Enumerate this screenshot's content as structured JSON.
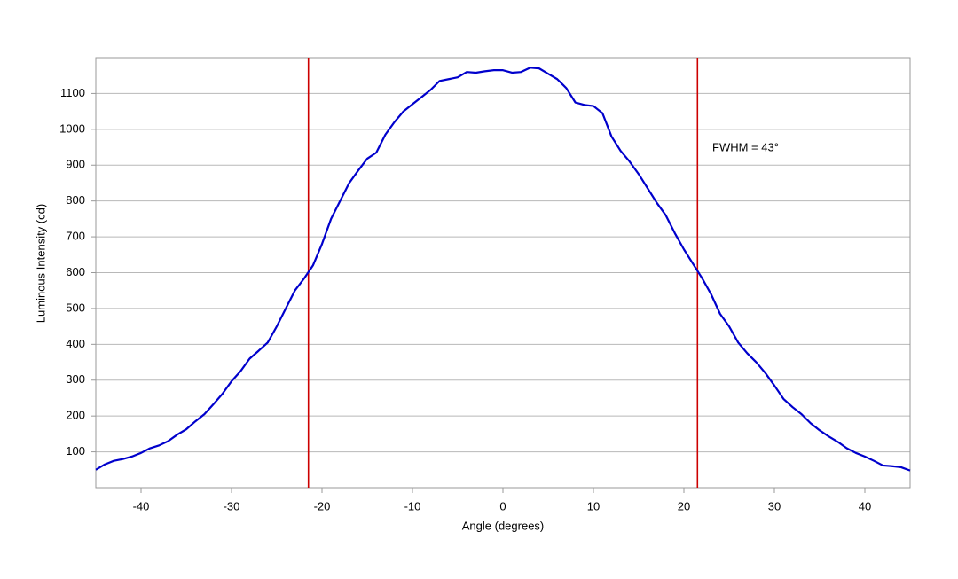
{
  "chart_data": {
    "type": "line",
    "x_label": "Angle (degrees)",
    "y_label": "Luminous Intensity (cd)",
    "annotation": "FWHM = 43°",
    "x": [
      -45,
      -44,
      -43,
      -42,
      -41,
      -40,
      -39,
      -38,
      -37,
      -36,
      -35,
      -34,
      -33,
      -32,
      -31,
      -30,
      -29,
      -28,
      -27,
      -26,
      -25,
      -24,
      -23,
      -22,
      -21,
      -20,
      -19,
      -18,
      -17,
      -16,
      -15,
      -14,
      -13,
      -12,
      -11,
      -10,
      -9,
      -8,
      -7,
      -6,
      -5,
      -4,
      -3,
      -2,
      -1,
      0,
      1,
      2,
      3,
      4,
      5,
      6,
      7,
      8,
      9,
      10,
      11,
      12,
      13,
      14,
      15,
      16,
      17,
      18,
      19,
      20,
      21,
      22,
      23,
      24,
      25,
      26,
      27,
      28,
      29,
      30,
      31,
      32,
      33,
      34,
      35,
      36,
      37,
      38,
      39,
      40,
      41,
      42,
      43,
      44,
      45
    ],
    "series": [
      {
        "color": "#0000cc",
        "values": [
          50,
          65,
          75,
          80,
          87,
          97,
          110,
          118,
          130,
          148,
          163,
          185,
          205,
          233,
          262,
          297,
          325,
          360,
          382,
          405,
          450,
          500,
          550,
          583,
          620,
          680,
          750,
          800,
          850,
          885,
          918,
          935,
          985,
          1020,
          1050,
          1070,
          1090,
          1110,
          1135,
          1140,
          1145,
          1160,
          1158,
          1162,
          1165,
          1165,
          1158,
          1160,
          1172,
          1170,
          1155,
          1140,
          1115,
          1075,
          1068,
          1065,
          1045,
          980,
          940,
          910,
          875,
          835,
          795,
          760,
          710,
          665,
          625,
          585,
          540,
          485,
          450,
          405,
          375,
          350,
          320,
          285,
          248,
          225,
          205,
          180,
          160,
          143,
          128,
          110,
          97,
          87,
          75,
          62,
          60,
          57,
          48
        ]
      }
    ],
    "vlines": [
      -21.5,
      21.5
    ],
    "vline_color": "#cc0000",
    "xlim": [
      -45,
      45
    ],
    "xticks": [
      -40,
      -30,
      -20,
      -10,
      0,
      10,
      20,
      30,
      40
    ],
    "ylim": [
      0,
      1200
    ],
    "yticks": [
      100,
      200,
      300,
      400,
      500,
      600,
      700,
      800,
      900,
      1000,
      1100
    ],
    "grid": true
  }
}
